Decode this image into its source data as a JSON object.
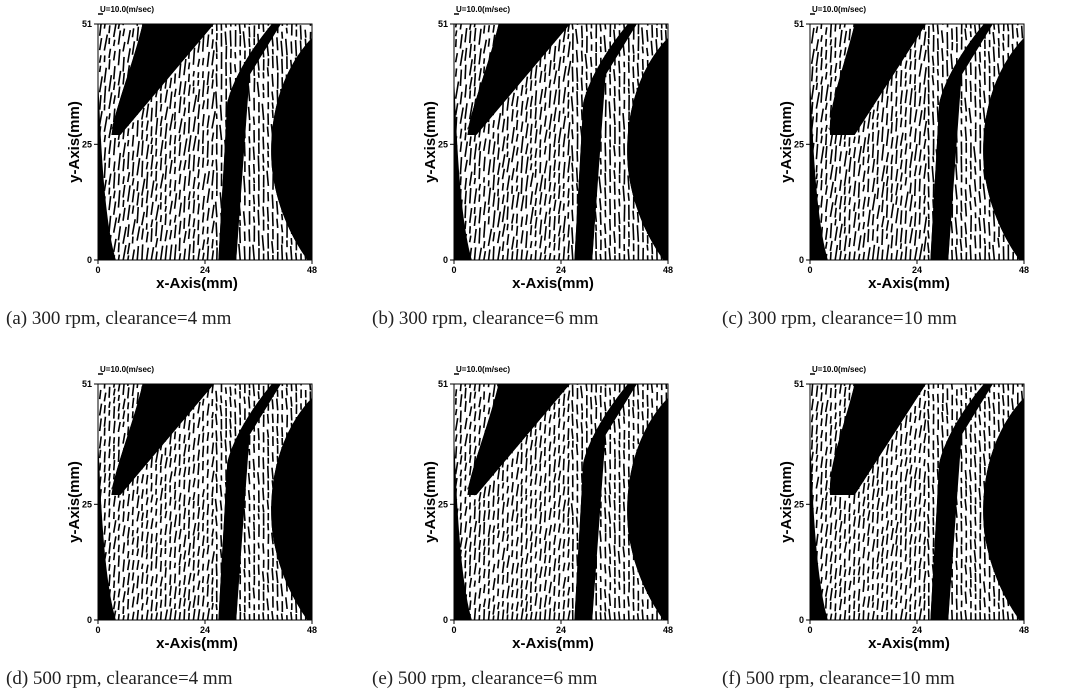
{
  "chart_data": [
    {
      "type": "other",
      "caption": "(a) 300 rpm, clearance=4 mm",
      "scale_label": "U=10.0(m/sec)",
      "xlabel": "x-Axis(mm)",
      "ylabel": "y-Axis(mm)",
      "xlim": [
        0,
        48
      ],
      "ylim": [
        0,
        51
      ],
      "xticks": [
        "0",
        "24",
        "48"
      ],
      "yticks": [
        "0",
        "25",
        "51"
      ],
      "x_tick_values": [
        0,
        24,
        48
      ],
      "y_tick_values": [
        0,
        25,
        51
      ]
    },
    {
      "type": "other",
      "caption": "(b) 300 rpm, clearance=6 mm",
      "scale_label": "U=10.0(m/sec)",
      "xlabel": "x-Axis(mm)",
      "ylabel": "y-Axis(mm)",
      "xlim": [
        0,
        48
      ],
      "ylim": [
        0,
        51
      ],
      "xticks": [
        "0",
        "24",
        "48"
      ],
      "yticks": [
        "0",
        "25",
        "51"
      ],
      "x_tick_values": [
        0,
        24,
        48
      ],
      "y_tick_values": [
        0,
        25,
        51
      ]
    },
    {
      "type": "other",
      "caption": "(c) 300 rpm, clearance=10 mm",
      "scale_label": "U=10.0(m/sec)",
      "xlabel": "x-Axis(mm)",
      "ylabel": "y-Axis(mm)",
      "xlim": [
        0,
        48
      ],
      "ylim": [
        0,
        51
      ],
      "xticks": [
        "0",
        "24",
        "48"
      ],
      "yticks": [
        "0",
        "25",
        "51"
      ],
      "x_tick_values": [
        0,
        24,
        48
      ],
      "y_tick_values": [
        0,
        25,
        51
      ]
    },
    {
      "type": "other",
      "caption": "(d) 500 rpm, clearance=4 mm",
      "scale_label": "U=10.0(m/sec)",
      "xlabel": "x-Axis(mm)",
      "ylabel": "y-Axis(mm)",
      "xlim": [
        0,
        48
      ],
      "ylim": [
        0,
        51
      ],
      "xticks": [
        "0",
        "24",
        "48"
      ],
      "yticks": [
        "0",
        "25",
        "51"
      ],
      "x_tick_values": [
        0,
        24,
        48
      ],
      "y_tick_values": [
        0,
        25,
        51
      ]
    },
    {
      "type": "other",
      "caption": "(e) 500 rpm, clearance=6 mm",
      "scale_label": "U=10.0(m/sec)",
      "xlabel": "x-Axis(mm)",
      "ylabel": "y-Axis(mm)",
      "xlim": [
        0,
        48
      ],
      "ylim": [
        0,
        51
      ],
      "xticks": [
        "0",
        "24",
        "48"
      ],
      "yticks": [
        "0",
        "25",
        "51"
      ],
      "x_tick_values": [
        0,
        24,
        48
      ],
      "y_tick_values": [
        0,
        25,
        51
      ]
    },
    {
      "type": "other",
      "caption": "(f) 500 rpm, clearance=10 mm",
      "scale_label": "U=10.0(m/sec)",
      "xlabel": "x-Axis(mm)",
      "ylabel": "y-Axis(mm)",
      "xlim": [
        0,
        48
      ],
      "ylim": [
        0,
        51
      ],
      "xticks": [
        "0",
        "24",
        "48"
      ],
      "yticks": [
        "0",
        "25",
        "51"
      ],
      "x_tick_values": [
        0,
        24,
        48
      ],
      "y_tick_values": [
        0,
        25,
        51
      ]
    }
  ]
}
